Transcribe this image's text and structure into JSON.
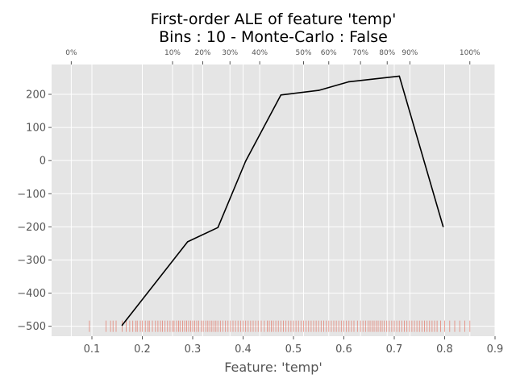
{
  "chart_data": {
    "type": "line",
    "title": [
      "First-order ALE of feature 'temp'",
      "Bins : 10 - Monte-Carlo : False"
    ],
    "xlabel": "Feature: 'temp'",
    "ylabel": "",
    "xlim": [
      0.02,
      0.9
    ],
    "ylim": [
      -530,
      290
    ],
    "xticks": [
      0.1,
      0.2,
      0.3,
      0.4,
      0.5,
      0.6,
      0.7,
      0.8,
      0.9
    ],
    "xtick_labels": [
      "0.1",
      "0.2",
      "0.3",
      "0.4",
      "0.5",
      "0.6",
      "0.7",
      "0.8",
      "0.9"
    ],
    "yticks": [
      200,
      100,
      0,
      -100,
      -200,
      -300,
      -400,
      -500
    ],
    "ytick_labels": [
      "200",
      "100",
      "0",
      "−100",
      "−200",
      "−300",
      "−400",
      "−500"
    ],
    "quantile_ticks": [
      {
        "label": "0%",
        "x": 0.059
      },
      {
        "label": "10%",
        "x": 0.26
      },
      {
        "label": "20%",
        "x": 0.32
      },
      {
        "label": "30%",
        "x": 0.374
      },
      {
        "label": "40%",
        "x": 0.433
      },
      {
        "label": "50%",
        "x": 0.52
      },
      {
        "label": "60%",
        "x": 0.57
      },
      {
        "label": "70%",
        "x": 0.633
      },
      {
        "label": "80%",
        "x": 0.686
      },
      {
        "label": "90%",
        "x": 0.731
      },
      {
        "label": "100%",
        "x": 0.85
      }
    ],
    "series": [
      {
        "x": [
          0.16,
          0.29,
          0.35,
          0.405,
          0.475,
          0.55,
          0.61,
          0.71,
          0.797
        ],
        "y": [
          -497,
          -245,
          -202,
          -2,
          198,
          212,
          238,
          255,
          -199
        ]
      }
    ],
    "rug_x": [
      0.095,
      0.128,
      0.137,
      0.142,
      0.148,
      0.16,
      0.168,
      0.175,
      0.181,
      0.187,
      0.19,
      0.196,
      0.2,
      0.206,
      0.211,
      0.214,
      0.22,
      0.226,
      0.231,
      0.236,
      0.24,
      0.245,
      0.25,
      0.255,
      0.26,
      0.263,
      0.268,
      0.272,
      0.275,
      0.28,
      0.284,
      0.288,
      0.292,
      0.296,
      0.3,
      0.304,
      0.308,
      0.312,
      0.317,
      0.321,
      0.326,
      0.33,
      0.334,
      0.338,
      0.342,
      0.346,
      0.35,
      0.355,
      0.36,
      0.365,
      0.37,
      0.375,
      0.38,
      0.385,
      0.39,
      0.395,
      0.4,
      0.405,
      0.41,
      0.415,
      0.42,
      0.425,
      0.43,
      0.436,
      0.442,
      0.448,
      0.452,
      0.456,
      0.46,
      0.465,
      0.47,
      0.475,
      0.48,
      0.485,
      0.49,
      0.495,
      0.5,
      0.505,
      0.51,
      0.515,
      0.52,
      0.525,
      0.53,
      0.535,
      0.54,
      0.545,
      0.55,
      0.555,
      0.56,
      0.565,
      0.57,
      0.575,
      0.58,
      0.585,
      0.59,
      0.595,
      0.6,
      0.605,
      0.61,
      0.615,
      0.62,
      0.627,
      0.633,
      0.638,
      0.643,
      0.648,
      0.652,
      0.656,
      0.66,
      0.664,
      0.668,
      0.672,
      0.676,
      0.68,
      0.685,
      0.69,
      0.695,
      0.7,
      0.705,
      0.71,
      0.715,
      0.72,
      0.725,
      0.73,
      0.735,
      0.74,
      0.745,
      0.75,
      0.755,
      0.76,
      0.765,
      0.77,
      0.775,
      0.78,
      0.785,
      0.792,
      0.8,
      0.81,
      0.82,
      0.83,
      0.84,
      0.85
    ],
    "rug_y": -500,
    "grid": true,
    "colors": {
      "background": "#e5e5e5",
      "grid": "#ffffff",
      "line": "#000000",
      "rug": "#e24a33"
    }
  }
}
